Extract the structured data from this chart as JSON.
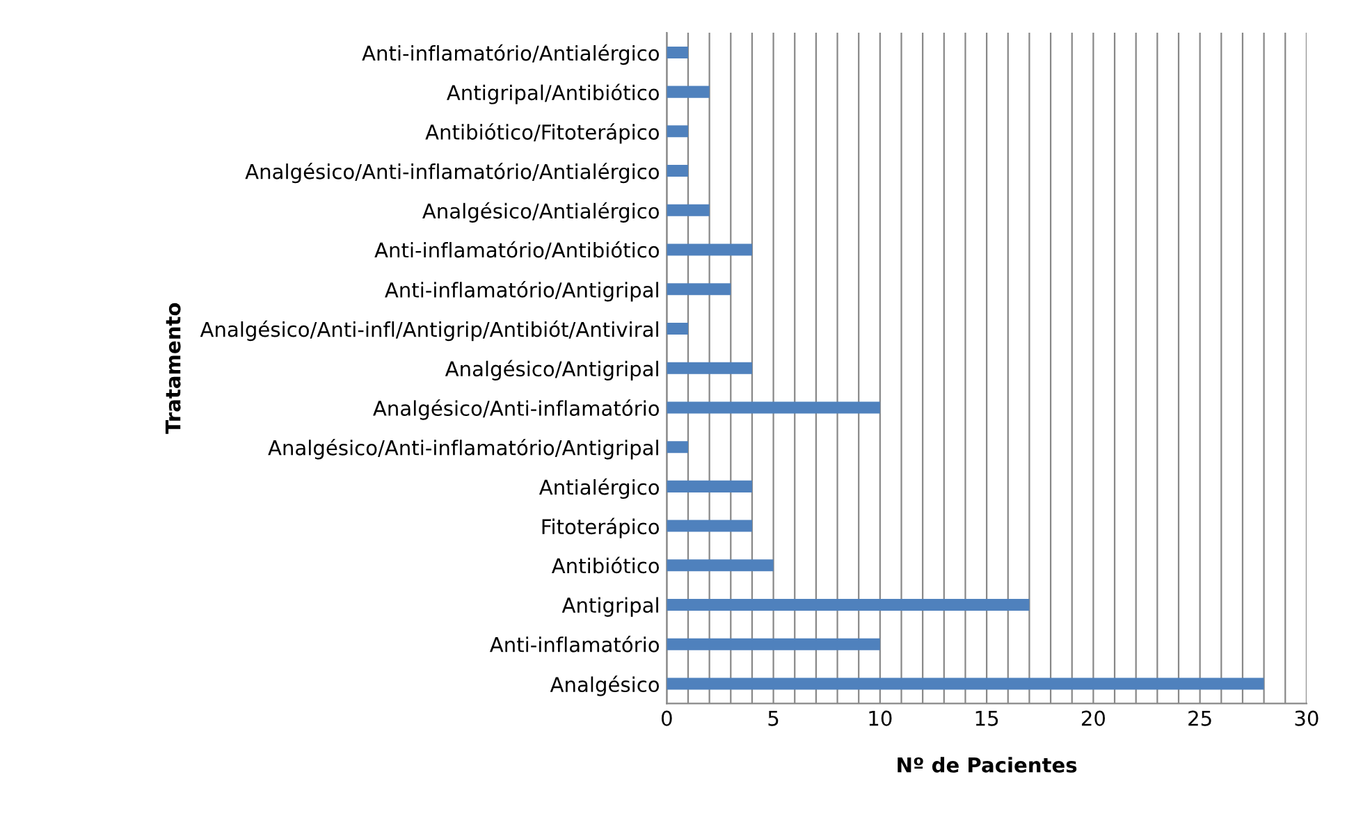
{
  "chart_data": {
    "type": "bar",
    "orientation": "horizontal",
    "xlabel": "Nº de Pacientes",
    "ylabel": "Tratamento",
    "categories": [
      "Anti-inflamatório/Antialérgico",
      "Antigripal/Antibiótico",
      "Antibiótico/Fitoterápico",
      "Analgésico/Anti-inflamatório/Antialérgico",
      "Analgésico/Antialérgico",
      "Anti-inflamatório/Antibiótico",
      "Anti-inflamatório/Antigripal",
      "Analgésico/Anti-infl/Antigrip/Antibiót/Antiviral",
      "Analgésico/Antigripal",
      "Analgésico/Anti-inflamatório",
      "Analgésico/Anti-inflamatório/Antigripal",
      "Antialérgico",
      "Fitoterápico",
      "Antibiótico",
      "Antigripal",
      "Anti-inflamatório",
      "Analgésico"
    ],
    "values": [
      1,
      2,
      1,
      1,
      2,
      4,
      3,
      1,
      4,
      10,
      1,
      4,
      4,
      5,
      17,
      10,
      28
    ],
    "color": "#4f81bd",
    "xlim": [
      0,
      30
    ],
    "xticks": [
      0,
      {
        "value": 1,
        "label": null
      },
      {
        "value": 2,
        "label": null
      },
      {
        "value": 3,
        "label": null
      },
      {
        "value": 4,
        "label": null
      },
      5,
      {
        "value": 6,
        "label": null
      },
      {
        "value": 7,
        "label": null
      },
      {
        "value": 8,
        "label": null
      },
      {
        "value": 9,
        "label": null
      },
      10,
      {
        "value": 11,
        "label": null
      },
      {
        "value": 12,
        "label": null
      },
      {
        "value": 13,
        "label": null
      },
      {
        "value": 14,
        "label": null
      },
      15,
      {
        "value": 16,
        "label": null
      },
      {
        "value": 17,
        "label": null
      },
      {
        "value": 18,
        "label": null
      },
      {
        "value": 19,
        "label": null
      },
      20,
      {
        "value": 21,
        "label": null
      },
      {
        "value": 22,
        "label": null
      },
      {
        "value": 23,
        "label": null
      },
      {
        "value": 24,
        "label": null
      },
      25,
      {
        "value": 26,
        "label": null
      },
      {
        "value": 27,
        "label": null
      },
      {
        "value": 28,
        "label": null
      },
      {
        "value": 29,
        "label": null
      },
      30
    ],
    "grid": "x",
    "legend": false
  }
}
